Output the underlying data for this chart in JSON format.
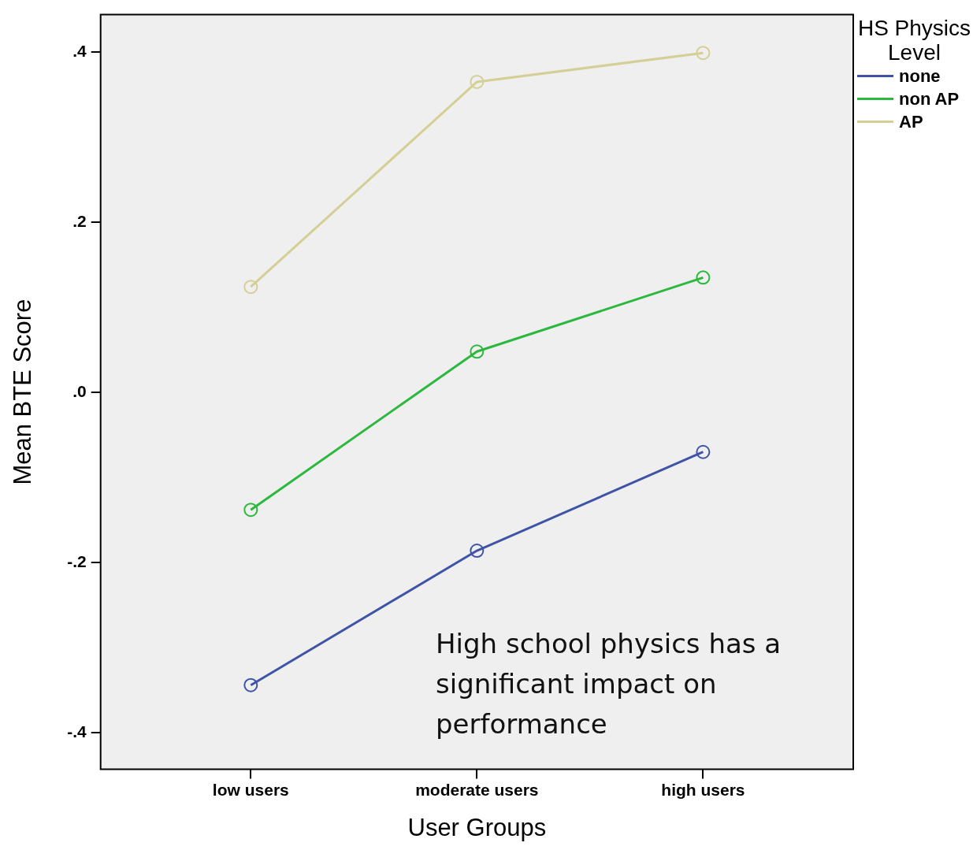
{
  "chart_data": {
    "type": "line",
    "xlabel": "User Groups",
    "ylabel": "Mean BTE Score",
    "legend_title": "HS Physics Level",
    "legend": "top right",
    "marker": "circle",
    "line_style": "solid",
    "grid": false,
    "categories": [
      "low users",
      "moderate users",
      "high users"
    ],
    "series": [
      {
        "name": "none",
        "color": "#3f54a6",
        "values": [
          -0.344,
          -0.186,
          -0.07
        ]
      },
      {
        "name": "non AP",
        "color": "#2cb83e",
        "values": [
          -0.138,
          0.048,
          0.135
        ]
      },
      {
        "name": "AP",
        "color": "#d4cf95",
        "values": [
          0.124,
          0.365,
          0.399
        ]
      }
    ],
    "ylim": [
      -0.443,
      0.444
    ],
    "yticks": [
      {
        "value": -0.4,
        "label": "-.4"
      },
      {
        "value": -0.2,
        "label": "-.2"
      },
      {
        "value": 0,
        "label": ".0"
      },
      {
        "value": 0.2,
        "label": ".2"
      },
      {
        "value": 0.4,
        "label": ".4"
      }
    ],
    "annotations": [
      "High school physics has a significant impact on performance"
    ]
  }
}
